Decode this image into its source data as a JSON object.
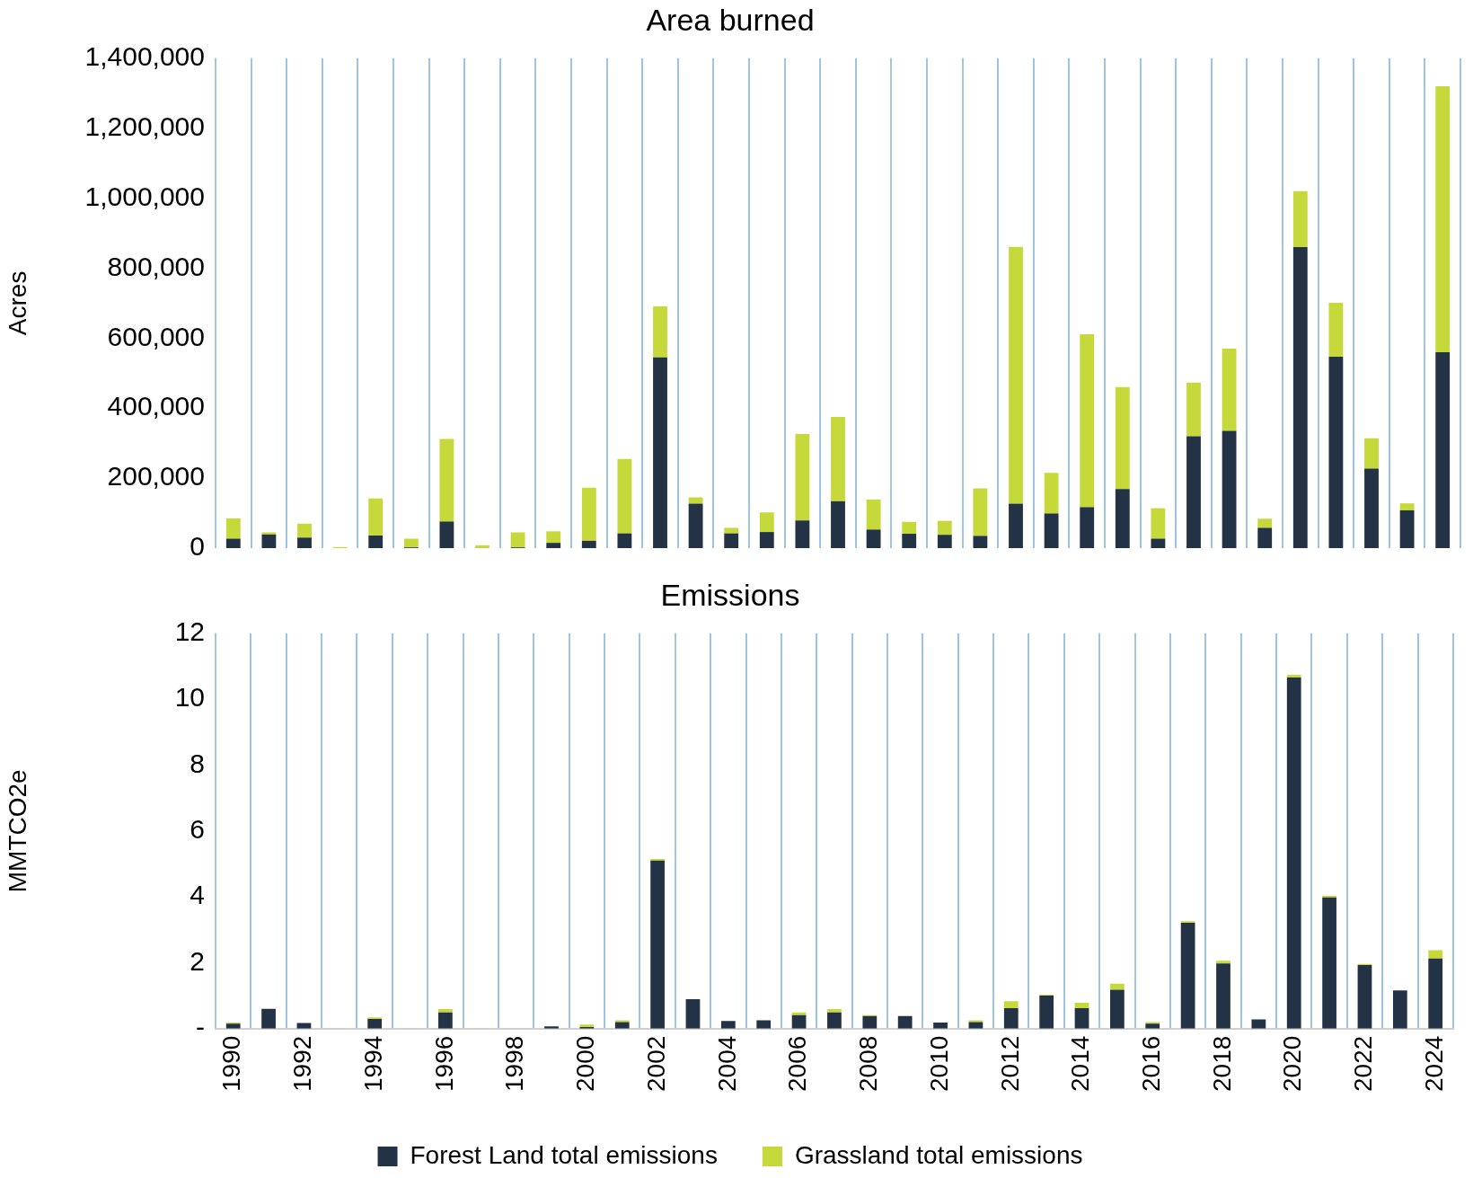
{
  "chart_data": [
    {
      "type": "bar",
      "title": "Area burned",
      "ylabel": "Acres",
      "stacked": true,
      "grid": "x",
      "legend": false,
      "tick_labels": "y",
      "categories": [
        "1990",
        null,
        "1992",
        null,
        "1994",
        null,
        "1996",
        null,
        "1998",
        null,
        "2000",
        null,
        "2002",
        null,
        "2004",
        null,
        "2006",
        null,
        "2008",
        null,
        "2010",
        null,
        "2012",
        null,
        "2014",
        null,
        "2016",
        null,
        "2018",
        null,
        "2020",
        null,
        "2022",
        null,
        "2024"
      ],
      "ylim": [
        0,
        1400000
      ],
      "yticks": [
        {
          "value": 0,
          "label": "0"
        },
        {
          "value": 200000,
          "label": "200,000"
        },
        {
          "value": 400000,
          "label": "400,000"
        },
        {
          "value": 600000,
          "label": "600,000"
        },
        {
          "value": 800000,
          "label": "800,000"
        },
        {
          "value": 1000000,
          "label": "1,000,000"
        },
        {
          "value": 1200000,
          "label": "1,200,000"
        },
        {
          "value": 1400000,
          "label": "1,400,000"
        }
      ],
      "series": [
        {
          "color": "#243246",
          "values": [
            27000,
            39000,
            30000,
            null,
            36000,
            2000,
            76000,
            null,
            2000,
            15000,
            21000,
            42000,
            545000,
            127000,
            42000,
            46000,
            79000,
            134000,
            53000,
            41000,
            38000,
            35000,
            127000,
            99000,
            117000,
            169000,
            27000,
            320000,
            335000,
            58000,
            860000,
            547000,
            227000,
            108000,
            560000
          ]
        },
        {
          "color": "#c5d93a",
          "values": [
            58000,
            6000,
            40000,
            3000,
            106000,
            25000,
            236000,
            8000,
            43000,
            33000,
            152000,
            213000,
            146000,
            18000,
            16000,
            56000,
            247000,
            241000,
            86000,
            34000,
            40000,
            136000,
            734000,
            116000,
            494000,
            291000,
            87000,
            153000,
            235000,
            26000,
            160000,
            154000,
            87000,
            20000,
            760000
          ]
        }
      ]
    },
    {
      "type": "bar",
      "title": "Emissions",
      "ylabel": "MMTCO2e",
      "stacked": true,
      "grid": "x",
      "legend": "bottom",
      "categories": [
        "1990",
        null,
        "1992",
        null,
        "1994",
        null,
        "1996",
        null,
        "1998",
        null,
        "2000",
        null,
        "2002",
        null,
        "2004",
        null,
        "2006",
        null,
        "2008",
        null,
        "2010",
        null,
        "2012",
        null,
        "2014",
        null,
        "2016",
        null,
        "2018",
        null,
        "2020",
        null,
        "2022",
        null,
        "2024"
      ],
      "ylim": [
        0,
        12
      ],
      "yticks": [
        {
          "value": 0,
          "label": "-"
        },
        2,
        4,
        6,
        8,
        10,
        12
      ],
      "series": [
        {
          "name": "Forest Land total emissions",
          "color": "#243246",
          "values": [
            0.15,
            0.6,
            0.17,
            0,
            0.29,
            0,
            0.49,
            0,
            0,
            0.07,
            0.05,
            0.2,
            5.1,
            0.89,
            0.23,
            0.25,
            0.41,
            0.49,
            0.38,
            0.38,
            0.18,
            0.2,
            0.62,
            1.0,
            0.62,
            1.18,
            0.15,
            3.21,
            1.98,
            0.28,
            10.66,
            3.98,
            1.93,
            1.16,
            2.13
          ]
        },
        {
          "name": "Grassland total emissions",
          "color": "#c5d93a",
          "values": [
            0.03,
            0,
            null,
            0,
            0.05,
            0,
            0.1,
            0,
            0,
            0,
            0.07,
            0.05,
            0.05,
            0,
            0,
            0,
            0.08,
            0.1,
            0.03,
            0,
            0,
            0.05,
            0.21,
            0.03,
            0.16,
            0.18,
            0.05,
            0.05,
            0.08,
            0,
            0.08,
            0.05,
            0.03,
            0,
            0.25
          ]
        }
      ]
    }
  ]
}
